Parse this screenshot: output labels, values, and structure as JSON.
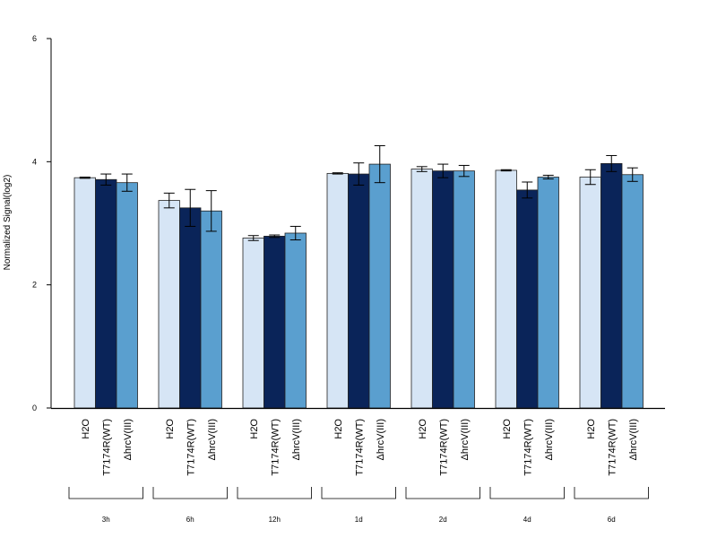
{
  "chart_data": {
    "type": "bar",
    "ylabel": "Normalized Signal(log2)",
    "ylim": [
      0,
      6
    ],
    "yticks": [
      0,
      2,
      4,
      6
    ],
    "groups": [
      "3h",
      "6h",
      "12h",
      "1d",
      "2d",
      "4d",
      "6d"
    ],
    "series": [
      {
        "name": "H2O",
        "color": "#d6e5f5",
        "values": [
          3.74,
          3.37,
          2.76,
          3.81,
          3.88,
          3.86,
          3.75
        ],
        "errors": [
          0.01,
          0.12,
          0.04,
          0.01,
          0.04,
          0.01,
          0.12
        ]
      },
      {
        "name": "T7174R(WT)",
        "color": "#0a2459",
        "values": [
          3.71,
          3.25,
          2.79,
          3.8,
          3.85,
          3.54,
          3.97
        ],
        "errors": [
          0.09,
          0.3,
          0.02,
          0.18,
          0.11,
          0.13,
          0.13
        ]
      },
      {
        "name": "ΔhrcV(III)",
        "color": "#5a9fcf",
        "values": [
          3.66,
          3.2,
          2.84,
          3.96,
          3.85,
          3.75,
          3.79
        ],
        "errors": [
          0.14,
          0.33,
          0.11,
          0.3,
          0.09,
          0.03,
          0.11
        ]
      }
    ]
  }
}
